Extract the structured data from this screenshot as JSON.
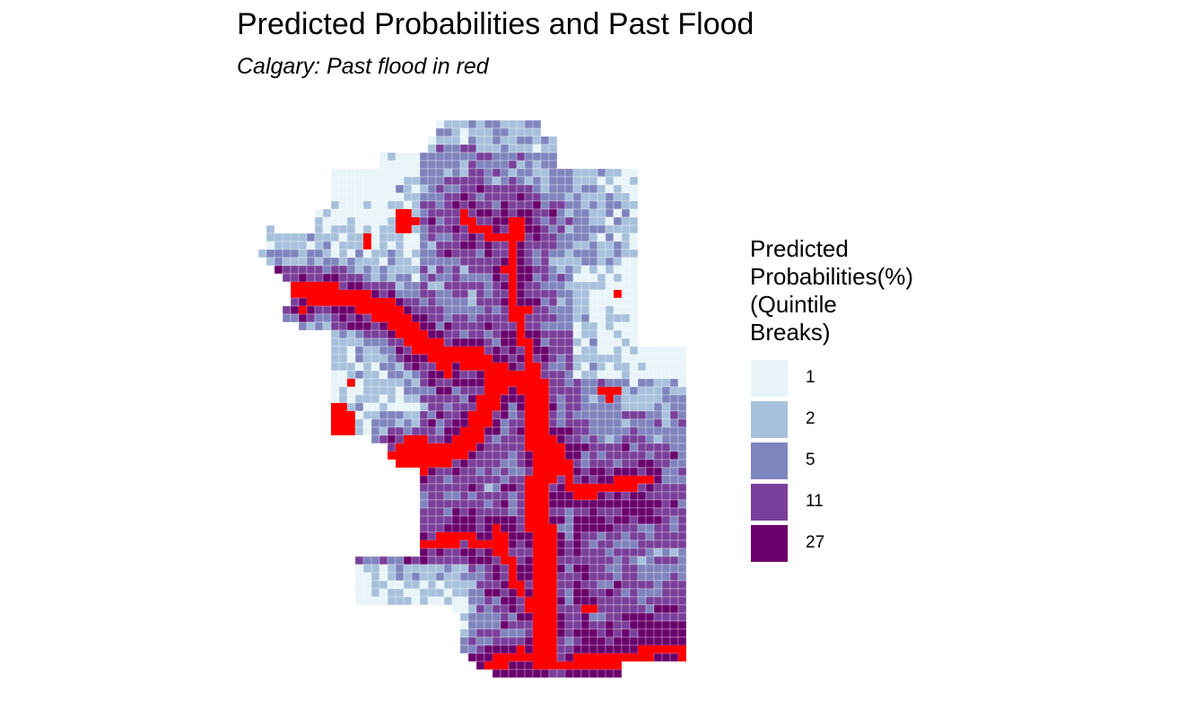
{
  "title": "Predicted Probabilities and Past Flood",
  "subtitle": "Calgary: Past flood in red",
  "legend": {
    "title_lines": [
      "Predicted",
      "Probabilities(%)",
      "(Quintile",
      "Breaks)"
    ],
    "items": [
      {
        "label": "1",
        "color": "#e8f4f8"
      },
      {
        "label": "2",
        "color": "#a7c0dc"
      },
      {
        "label": "5",
        "color": "#7f84be"
      },
      {
        "label": "11",
        "color": "#7a3f9a"
      },
      {
        "label": "27",
        "color": "#6a006c"
      }
    ]
  },
  "flood_color": "#ff0000"
}
